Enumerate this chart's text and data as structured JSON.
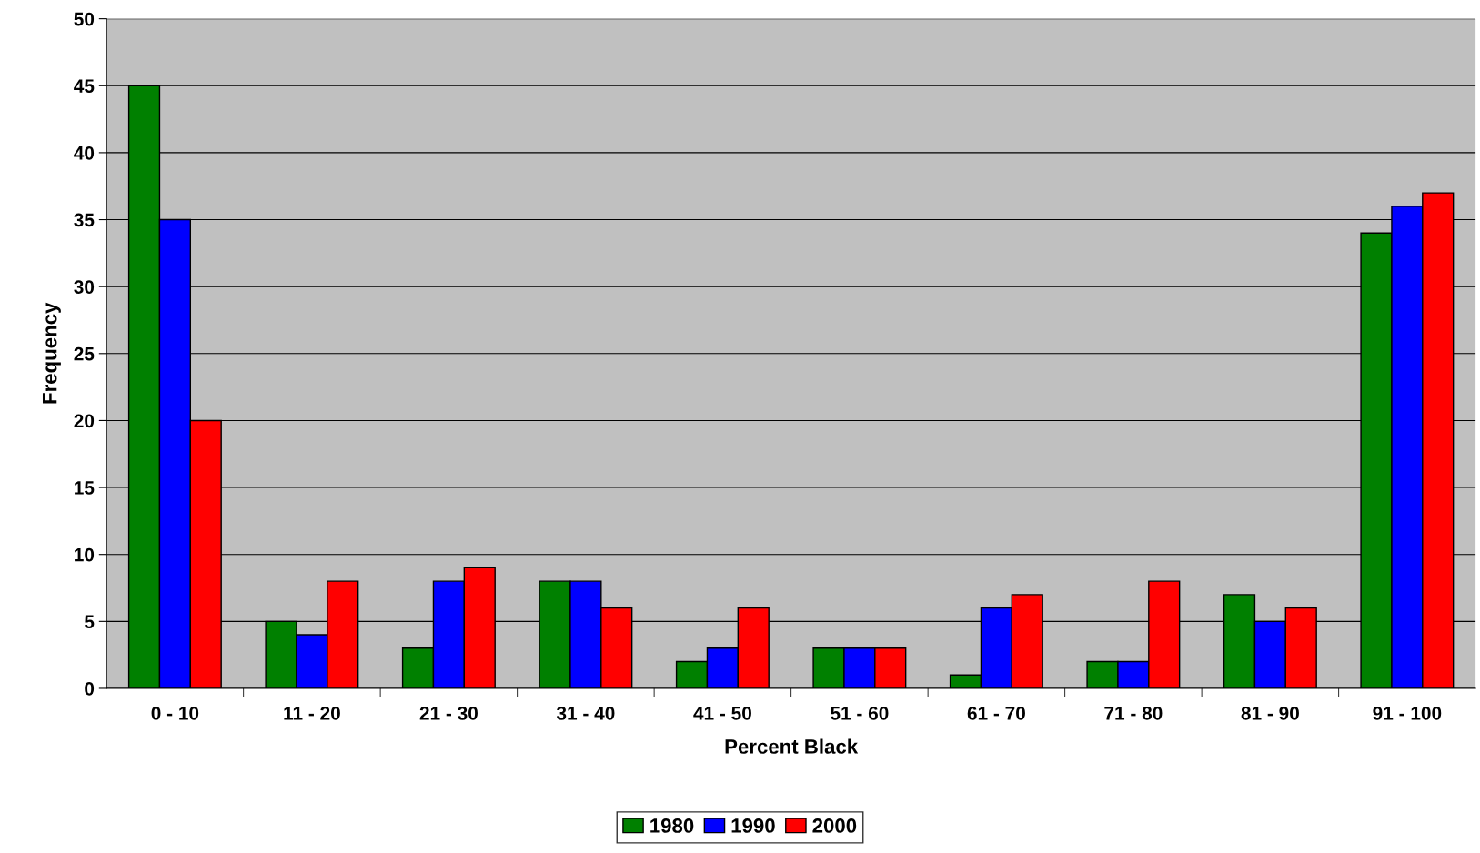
{
  "chart_data": {
    "type": "bar",
    "xlabel": "Percent Black",
    "ylabel": "Frequency",
    "categories": [
      "0 - 10",
      "11 - 20",
      "21 - 30",
      "31 - 40",
      "41 - 50",
      "51 - 60",
      "61 - 70",
      "71 - 80",
      "81 - 90",
      "91 - 100"
    ],
    "series": [
      {
        "name": "1980",
        "color": "#008000",
        "values": [
          45,
          5,
          3,
          8,
          2,
          3,
          1,
          2,
          7,
          34
        ]
      },
      {
        "name": "1990",
        "color": "#0000ff",
        "values": [
          35,
          4,
          8,
          8,
          3,
          3,
          6,
          2,
          5,
          36
        ]
      },
      {
        "name": "2000",
        "color": "#ff0000",
        "values": [
          20,
          8,
          9,
          6,
          6,
          3,
          7,
          8,
          6,
          37
        ]
      }
    ],
    "ylim": [
      0,
      50
    ],
    "yticks": [
      0,
      5,
      10,
      15,
      20,
      25,
      30,
      35,
      40,
      45,
      50
    ],
    "grid": "y",
    "legend": "bottom"
  }
}
